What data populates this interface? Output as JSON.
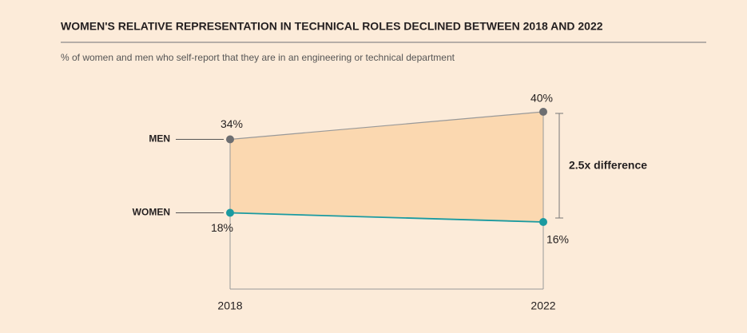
{
  "chart_data": {
    "type": "slope",
    "title": "WOMEN'S RELATIVE REPRESENTATION IN TECHNICAL ROLES DECLINED BETWEEN 2018 AND 2022",
    "subtitle": "% of women and men who self-report that they are in an engineering or technical department",
    "categories": [
      "2018",
      "2022"
    ],
    "series": [
      {
        "name": "MEN",
        "color": "#6d6e71",
        "values": [
          34,
          40
        ],
        "value_labels": [
          "34%",
          "40%"
        ]
      },
      {
        "name": "WOMEN",
        "color": "#1a9aa0",
        "values": [
          18,
          16
        ],
        "value_labels": [
          "18%",
          "16%"
        ]
      }
    ],
    "fill_color": "#fbd8b0",
    "annotation": "2.5x difference"
  }
}
